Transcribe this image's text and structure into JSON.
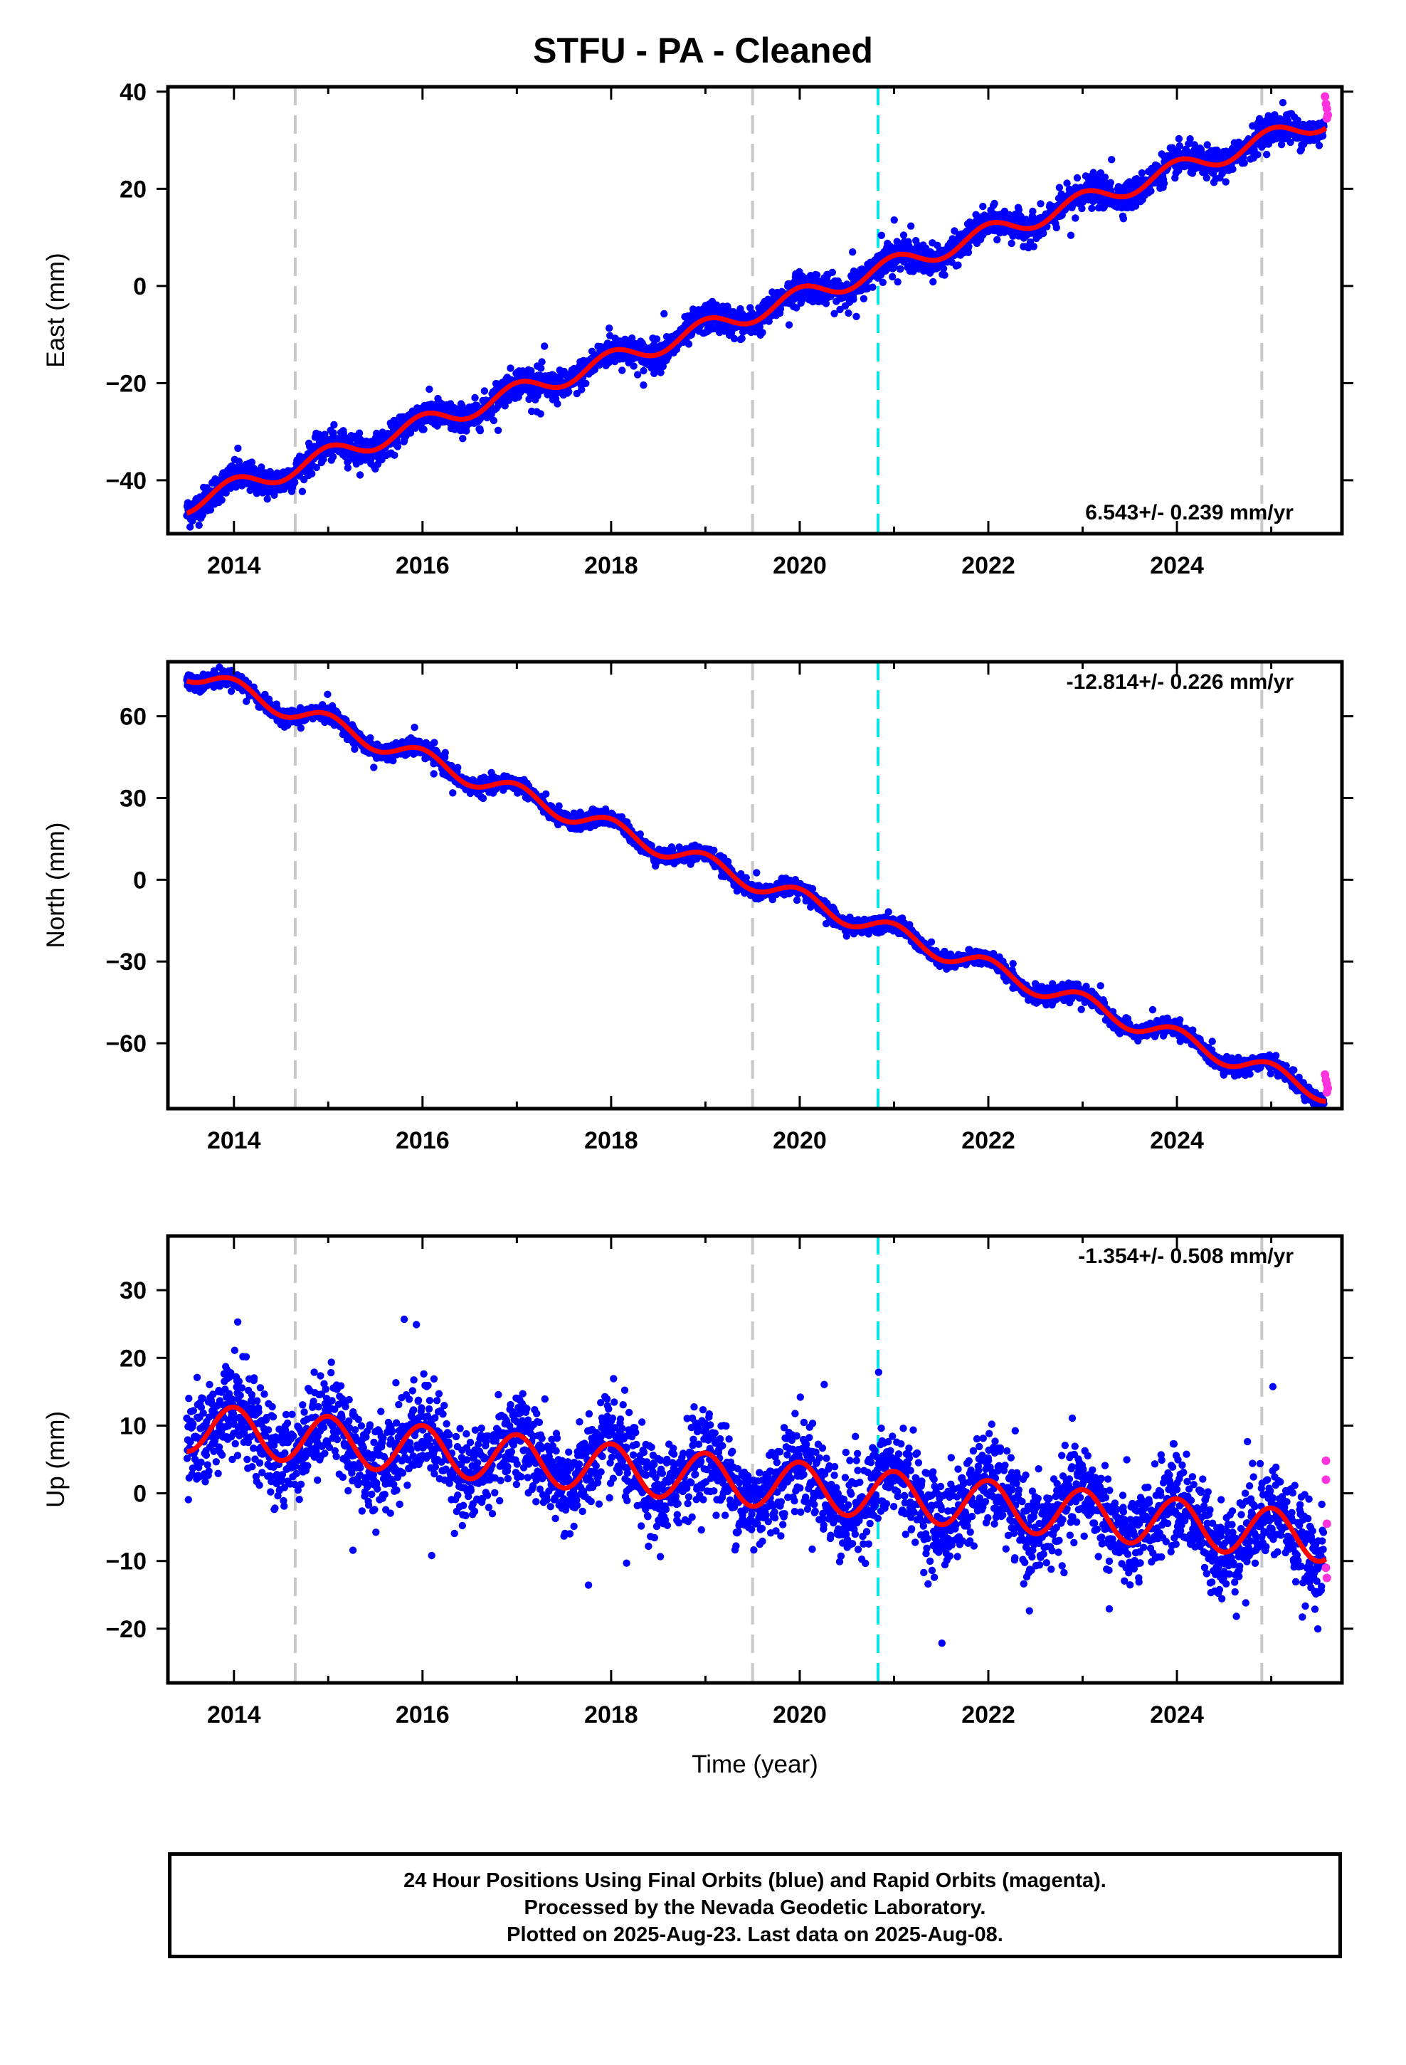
{
  "title": "STFU  - PA - Cleaned",
  "footer": [
    "24 Hour Positions Using Final Orbits (blue) and Rapid Orbits (magenta).",
    "Processed by the Nevada Geodetic Laboratory.",
    "Plotted on 2025-Aug-23. Last data on 2025-Aug-08."
  ],
  "colors": {
    "final": "#0000ff",
    "rapid": "#ff33dd",
    "model": "#ff0000",
    "equipment_change": "#c8c8c8",
    "event": "#00e5e5"
  },
  "chart_data": [
    {
      "type": "scatter",
      "ylabel": "East (mm)",
      "xlabel": "",
      "xlim": [
        2013.3,
        2025.75
      ],
      "ylim": [
        -51,
        41
      ],
      "x_ticks": [
        2014,
        2016,
        2018,
        2020,
        2022,
        2024
      ],
      "y_ticks": [
        -40,
        -20,
        0,
        20,
        40
      ],
      "rate_label": "6.543+/- 0.239 mm/yr",
      "rate_position": "bottom-right",
      "vlines_gray": [
        2014.65,
        2019.5,
        2024.9
      ],
      "vlines_cyan": [
        2020.83
      ],
      "model": {
        "t0": 2013.5,
        "y0": -44.8,
        "rate": 6.543,
        "annual_amp": 2.0,
        "noise_sd": 1.5
      },
      "rapid_points": [
        [
          2025.57,
          39.0
        ],
        [
          2025.58,
          37.5
        ],
        [
          2025.59,
          36.5
        ],
        [
          2025.6,
          35.2
        ],
        [
          2025.59,
          34.5
        ]
      ]
    },
    {
      "type": "scatter",
      "ylabel": "North (mm)",
      "xlabel": "",
      "xlim": [
        2013.3,
        2025.75
      ],
      "ylim": [
        -84,
        80
      ],
      "x_ticks": [
        2014,
        2016,
        2018,
        2020,
        2022,
        2024
      ],
      "y_ticks": [
        -60,
        -30,
        0,
        30,
        60
      ],
      "rate_label": "-12.814+/- 0.226 mm/yr",
      "rate_position": "top-right",
      "vlines_gray": [
        2014.65,
        2019.5,
        2024.9
      ],
      "vlines_cyan": [
        2020.83
      ],
      "model": {
        "t0": 2013.5,
        "y0": 76.5,
        "rate": -12.814,
        "annual_amp": 3.5,
        "noise_sd": 1.4
      },
      "rapid_points": [
        [
          2025.57,
          -71.5
        ],
        [
          2025.58,
          -73.5
        ],
        [
          2025.59,
          -75.0
        ],
        [
          2025.6,
          -76.5
        ],
        [
          2025.59,
          -78.0
        ]
      ]
    },
    {
      "type": "scatter",
      "ylabel": "Up (mm)",
      "xlabel": "Time (year)",
      "xlim": [
        2013.3,
        2025.75
      ],
      "ylim": [
        -28,
        38
      ],
      "x_ticks": [
        2014,
        2016,
        2018,
        2020,
        2022,
        2024
      ],
      "y_ticks": [
        -20,
        -10,
        0,
        10,
        20,
        30
      ],
      "rate_label": "-1.354+/- 0.508 mm/yr",
      "rate_position": "top-right",
      "vlines_gray": [
        2014.65,
        2019.5,
        2024.9
      ],
      "vlines_cyan": [
        2020.83
      ],
      "model": {
        "t0": 2013.5,
        "y0": 9.8,
        "rate": -1.354,
        "annual_amp": 3.6,
        "noise_sd": 3.4
      },
      "rapid_points": [
        [
          2025.58,
          4.8
        ],
        [
          2025.58,
          2.0
        ],
        [
          2025.59,
          -4.5
        ],
        [
          2025.58,
          -11.0
        ],
        [
          2025.59,
          -12.5
        ]
      ]
    }
  ]
}
